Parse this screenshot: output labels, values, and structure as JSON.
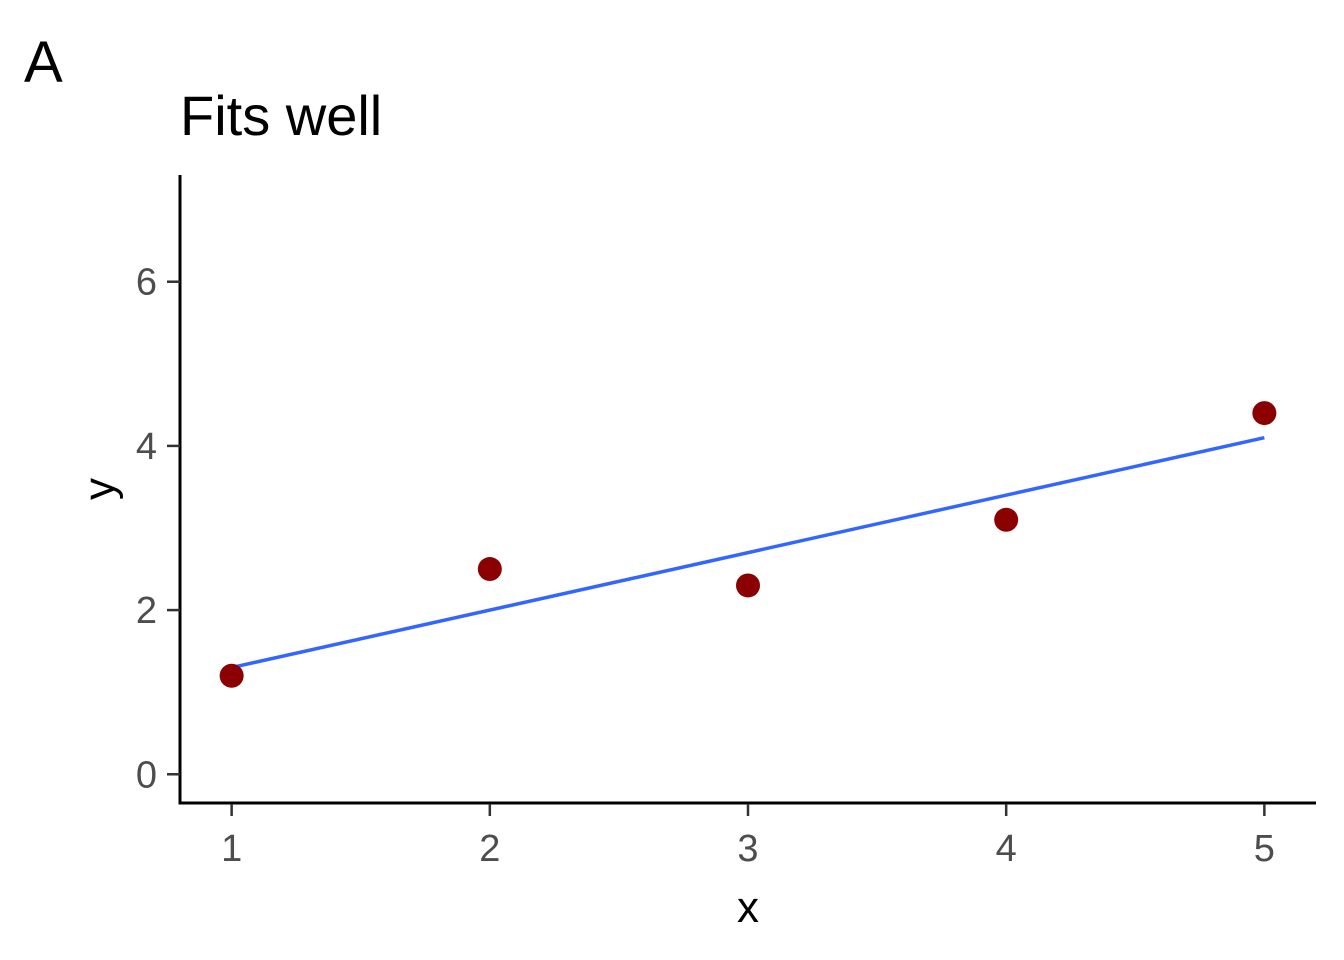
{
  "panel_tag": "A",
  "chart_data": {
    "type": "scatter",
    "title": "Fits well",
    "xlabel": "x",
    "ylabel": "y",
    "xlim": [
      0.8,
      5.2
    ],
    "ylim": [
      -0.35,
      7.3
    ],
    "x_ticks": [
      1,
      2,
      3,
      4,
      5
    ],
    "y_ticks": [
      0,
      2,
      4,
      6
    ],
    "grid": false,
    "series": [
      {
        "type": "scatter",
        "x": [
          1,
          2,
          3,
          4,
          5
        ],
        "y": [
          1.2,
          2.5,
          2.3,
          3.1,
          4.4
        ],
        "color": "#8b0000"
      },
      {
        "type": "line",
        "x": [
          1,
          5
        ],
        "y": [
          1.3,
          4.1
        ],
        "color": "#3366ff"
      }
    ]
  }
}
